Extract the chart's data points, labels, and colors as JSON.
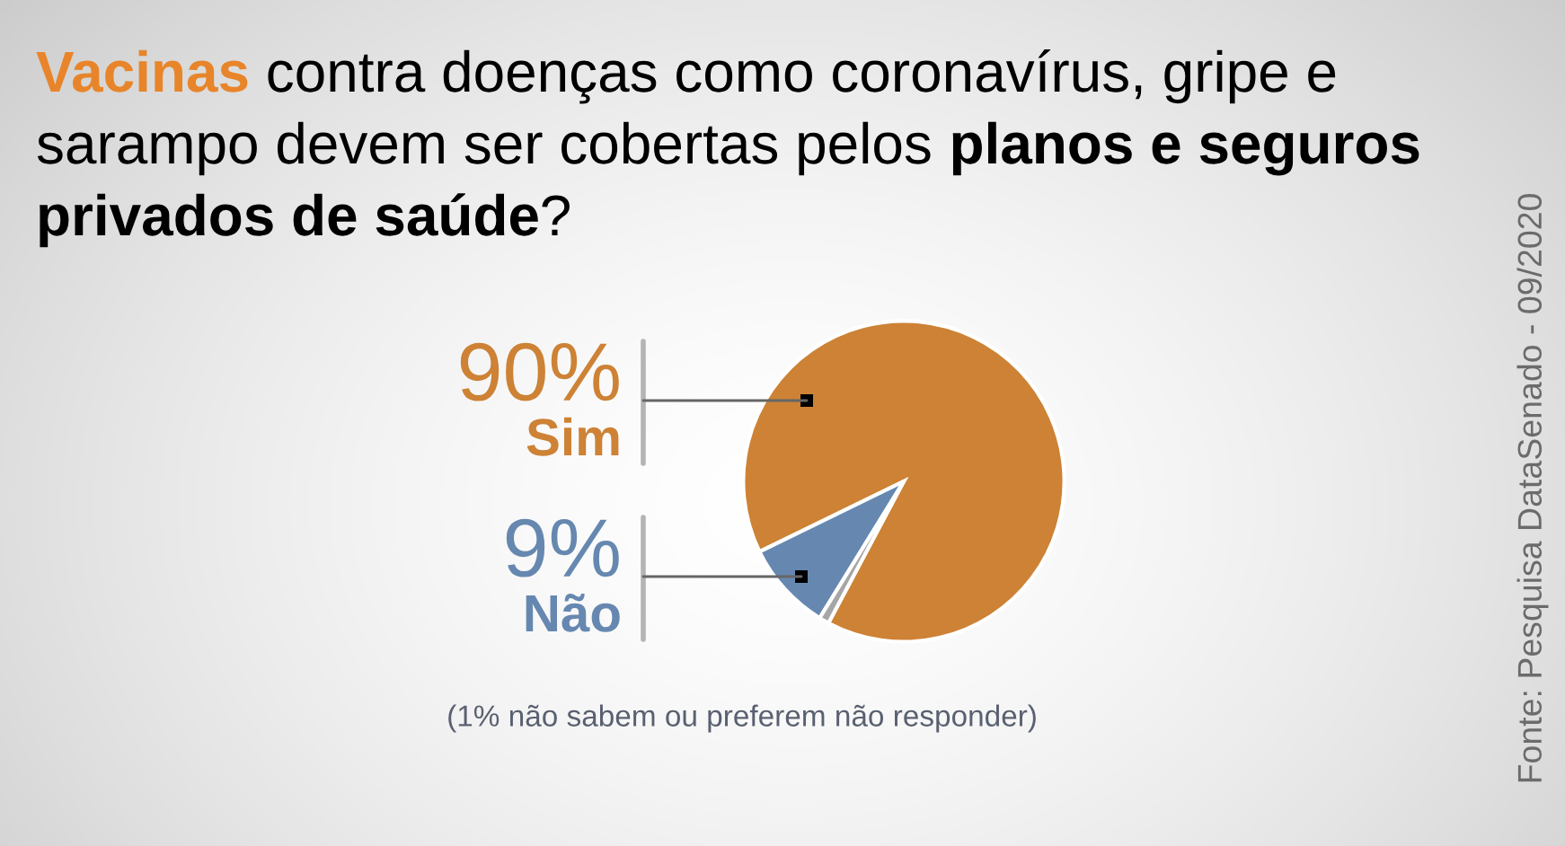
{
  "chart_data": {
    "type": "pie",
    "title": "Vacinas contra doenças como coronavírus, gripe e sarampo devem ser cobertas pelos planos e seguros privados de saúde?",
    "categories": [
      "Sim",
      "Não",
      null
    ],
    "values": [
      90,
      9,
      1
    ],
    "colors": [
      "#cd8235",
      "#6688b0",
      "#a6a6a6"
    ],
    "value_labels": [
      "90%",
      "9%",
      null
    ],
    "annotations": [
      "(1% não sabem ou preferem não responder)",
      "Fonte: Pesquisa DataSenado - 09/2020"
    ],
    "legend": false
  }
}
